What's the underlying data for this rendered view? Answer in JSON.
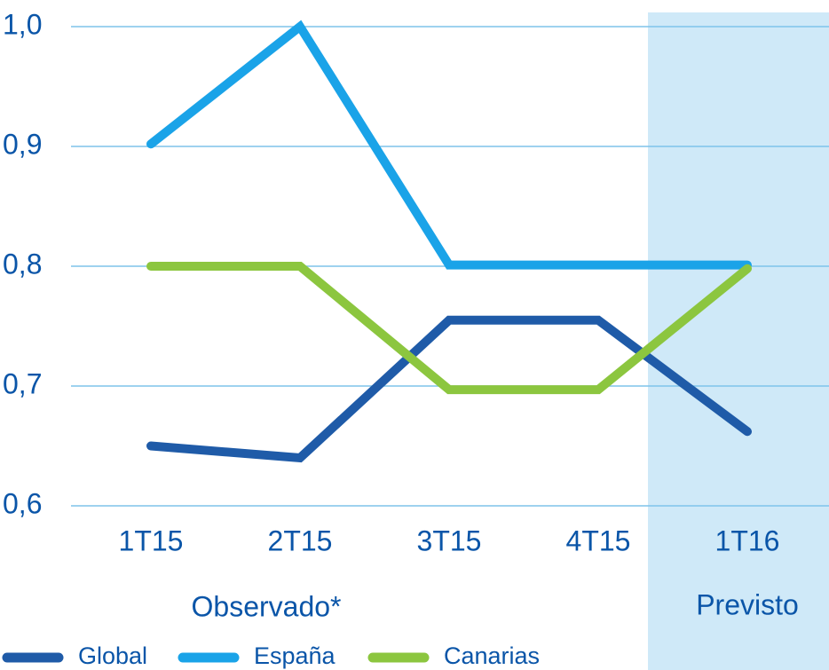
{
  "chart_data": {
    "type": "line",
    "categories": [
      "1T15",
      "2T15",
      "3T15",
      "4T15",
      "1T16"
    ],
    "series": [
      {
        "name": "Global",
        "color": "#1f5ba8",
        "points": [
          {
            "x": 0,
            "y": 0.65
          },
          {
            "x": 1,
            "y": 0.64
          },
          {
            "x": 2,
            "y": 0.755
          },
          {
            "x": 3,
            "y": 0.755
          },
          {
            "x": 4,
            "y": 0.662
          }
        ]
      },
      {
        "name": "España",
        "color": "#1aa3e8",
        "points": [
          {
            "x": 0,
            "y": 0.902
          },
          {
            "x": 1.0,
            "y": 1.0
          },
          {
            "x": 2,
            "y": 0.801
          },
          {
            "x": 3,
            "y": 0.801
          },
          {
            "x": 4,
            "y": 0.801
          }
        ]
      },
      {
        "name": "Canarias",
        "color": "#8cc63f",
        "points": [
          {
            "x": 0,
            "y": 0.8
          },
          {
            "x": 1,
            "y": 0.8
          },
          {
            "x": 2,
            "y": 0.697
          },
          {
            "x": 3,
            "y": 0.697
          },
          {
            "x": 4,
            "y": 0.798
          }
        ]
      }
    ],
    "yticks": [
      "0,6",
      "0,7",
      "0,8",
      "0,9",
      "1,0"
    ],
    "ytick_values": [
      0.6,
      0.7,
      0.8,
      0.9,
      1.0
    ],
    "ylim": [
      0.6,
      1.0
    ],
    "grid": true,
    "group_labels": {
      "observed": "Observado*",
      "forecast": "Previsto"
    },
    "forecast_band": {
      "from_category": "1T16",
      "color": "#cfe9f8"
    },
    "legend_position": "bottom-left",
    "text_color": "#0a55a8",
    "grid_color": "#7fc4ea"
  }
}
